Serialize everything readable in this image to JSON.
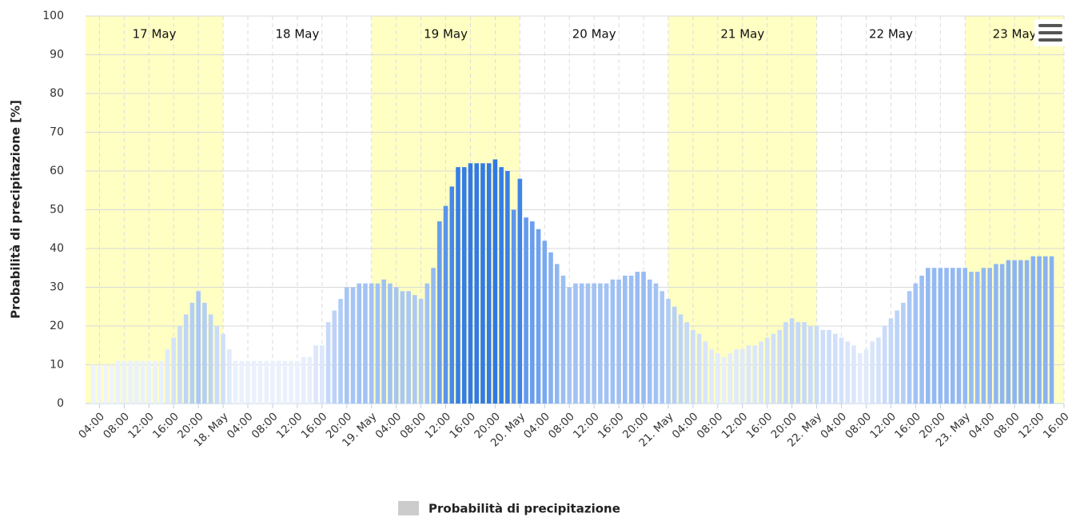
{
  "chart_data": {
    "type": "bar",
    "y_axis_label": "Probabilità di precipitazione [%]",
    "series": [
      {
        "name": "Probabilità di precipitazione",
        "color": "#cccccc",
        "x": [
          3,
          4,
          5,
          6,
          7,
          8,
          9,
          10,
          11,
          12,
          13,
          14,
          15,
          16,
          17,
          18,
          19,
          20,
          21,
          22,
          23,
          24,
          25,
          26,
          27,
          28,
          29,
          30,
          31,
          32,
          33,
          34,
          35,
          36,
          37,
          38,
          39,
          40,
          41,
          42,
          43,
          44,
          45,
          46,
          47,
          48,
          49,
          50,
          51,
          52,
          53,
          54,
          55,
          56,
          57,
          58,
          59,
          60,
          61,
          62,
          63,
          64,
          65,
          66,
          67,
          68,
          69,
          70,
          71,
          72,
          73,
          74,
          75,
          76,
          77,
          78,
          79,
          80,
          81,
          82,
          83,
          84,
          85,
          86,
          87,
          88,
          89,
          90,
          91,
          92,
          93,
          94,
          95,
          96,
          97,
          98,
          99,
          100,
          101,
          102,
          103,
          104,
          105,
          106,
          107,
          108,
          109,
          110,
          111,
          112,
          113,
          114,
          115,
          116,
          117,
          118,
          119,
          120,
          121,
          122,
          123,
          124,
          125,
          126,
          127,
          128,
          129,
          130,
          131,
          132,
          133,
          134,
          135,
          136,
          137,
          138,
          139,
          140,
          141,
          142,
          143,
          144,
          145,
          146,
          147,
          148,
          149,
          150,
          151,
          152,
          153,
          154,
          155,
          156,
          157,
          158
        ],
        "values": [
          10,
          10,
          10,
          10,
          11,
          11,
          11,
          11,
          11,
          11,
          11,
          11,
          14,
          17,
          20,
          23,
          26,
          29,
          26,
          23,
          20,
          18,
          14,
          11,
          11,
          11,
          11,
          11,
          11,
          11,
          11,
          11,
          11,
          11,
          12,
          12,
          15,
          15,
          21,
          24,
          27,
          30,
          30,
          31,
          31,
          31,
          31,
          32,
          31,
          30,
          29,
          29,
          28,
          27,
          31,
          35,
          47,
          51,
          56,
          61,
          61,
          62,
          62,
          62,
          62,
          63,
          61,
          60,
          50,
          58,
          48,
          47,
          45,
          42,
          39,
          36,
          33,
          30,
          31,
          31,
          31,
          31,
          31,
          31,
          32,
          32,
          33,
          33,
          34,
          34,
          32,
          31,
          29,
          27,
          25,
          23,
          21,
          19,
          18,
          16,
          14,
          13,
          12,
          13,
          14,
          14,
          15,
          15,
          16,
          17,
          18,
          19,
          21,
          22,
          21,
          21,
          20,
          20,
          19,
          19,
          18,
          17,
          16,
          15,
          13,
          14,
          16,
          17,
          20,
          22,
          24,
          26,
          29,
          31,
          33,
          35,
          35,
          35,
          35,
          35,
          35,
          35,
          34,
          34,
          35,
          35,
          36,
          36,
          37,
          37,
          37,
          37,
          38,
          38,
          38,
          38
        ]
      }
    ],
    "bar_color_low": "#eef3fd",
    "bar_color_high": "#2f78e6",
    "bar_color_range": [
      10,
      63
    ],
    "day_bands": [
      {
        "label": "17 May",
        "from": 0,
        "to": 24,
        "color": "#ffffc4"
      },
      {
        "label": "18 May",
        "from": 24,
        "to": 48,
        "color": "#ffffff"
      },
      {
        "label": "19 May",
        "from": 48,
        "to": 72,
        "color": "#ffffc4"
      },
      {
        "label": "20 May",
        "from": 72,
        "to": 96,
        "color": "#ffffff"
      },
      {
        "label": "21 May",
        "from": 96,
        "to": 120,
        "color": "#ffffc4"
      },
      {
        "label": "22 May",
        "from": 120,
        "to": 144,
        "color": "#ffffff"
      },
      {
        "label": "23 May",
        "from": 144,
        "to": 168,
        "color": "#ffffc4"
      }
    ],
    "xlim": [
      1.75,
      160
    ],
    "xticks": [
      {
        "value": 4,
        "label": "04:00"
      },
      {
        "value": 8,
        "label": "08:00"
      },
      {
        "value": 12,
        "label": "12:00"
      },
      {
        "value": 16,
        "label": "16:00"
      },
      {
        "value": 20,
        "label": "20:00"
      },
      {
        "value": 24,
        "label": "18. May"
      },
      {
        "value": 28,
        "label": "04:00"
      },
      {
        "value": 32,
        "label": "08:00"
      },
      {
        "value": 36,
        "label": "12:00"
      },
      {
        "value": 40,
        "label": "16:00"
      },
      {
        "value": 44,
        "label": "20:00"
      },
      {
        "value": 48,
        "label": "19. May"
      },
      {
        "value": 52,
        "label": "04:00"
      },
      {
        "value": 56,
        "label": "08:00"
      },
      {
        "value": 60,
        "label": "12:00"
      },
      {
        "value": 64,
        "label": "16:00"
      },
      {
        "value": 68,
        "label": "20:00"
      },
      {
        "value": 72,
        "label": "20. May"
      },
      {
        "value": 76,
        "label": "04:00"
      },
      {
        "value": 80,
        "label": "08:00"
      },
      {
        "value": 84,
        "label": "12:00"
      },
      {
        "value": 88,
        "label": "16:00"
      },
      {
        "value": 92,
        "label": "20:00"
      },
      {
        "value": 96,
        "label": "21. May"
      },
      {
        "value": 100,
        "label": "04:00"
      },
      {
        "value": 104,
        "label": "08:00"
      },
      {
        "value": 108,
        "label": "12:00"
      },
      {
        "value": 112,
        "label": "16:00"
      },
      {
        "value": 116,
        "label": "20:00"
      },
      {
        "value": 120,
        "label": "22. May"
      },
      {
        "value": 124,
        "label": "04:00"
      },
      {
        "value": 128,
        "label": "08:00"
      },
      {
        "value": 132,
        "label": "12:00"
      },
      {
        "value": 136,
        "label": "16:00"
      },
      {
        "value": 140,
        "label": "20:00"
      },
      {
        "value": 144,
        "label": "23. May"
      },
      {
        "value": 148,
        "label": "04:00"
      },
      {
        "value": 152,
        "label": "08:00"
      },
      {
        "value": 156,
        "label": "12:00"
      },
      {
        "value": 160,
        "label": "16:00"
      }
    ],
    "ylim": [
      0,
      100
    ],
    "yticks": [
      0,
      10,
      20,
      30,
      40,
      50,
      60,
      70,
      80,
      90,
      100
    ],
    "grid": true,
    "legend": "bottom"
  }
}
